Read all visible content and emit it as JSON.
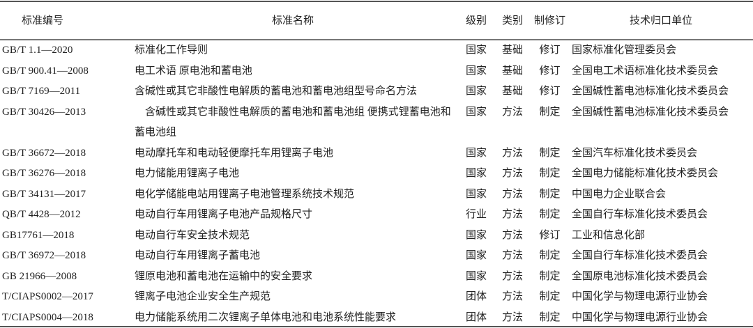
{
  "headers": [
    "标准编号",
    "标准名称",
    "级别",
    "类别",
    "制修订",
    "技术归口单位"
  ],
  "rows": [
    {
      "code": "GB/T 1.1—2020",
      "name": "标准化工作导则",
      "level": "国家",
      "type": "基础",
      "revision": "修订",
      "unit": "国家标准化管理委员会"
    },
    {
      "code": "GB/T 900.41—2008",
      "name": "电工术语 原电池和蓄电池",
      "level": "国家",
      "type": "基础",
      "revision": "修订",
      "unit": "全国电工术语标准化技术委员会"
    },
    {
      "code": "GB/T 7169—2011",
      "name": "含碱性或其它非酸性电解质的蓄电池和蓄电池组型号命名方法",
      "level": "国家",
      "type": "基础",
      "revision": "修订",
      "unit": "全国碱性蓄电池标准化技术委员会"
    },
    {
      "code": "GB/T 30426—2013",
      "name": "　含碱性或其它非酸性电解质的蓄电池和蓄电池组 便携式锂蓄电池和蓄电池组",
      "level": "国家",
      "type": "方法",
      "revision": "制定",
      "unit": "全国碱性蓄电池标准化技术委员会"
    },
    {
      "code": "GB/T 36672—2018",
      "name": "电动摩托车和电动轻便摩托车用锂离子电池",
      "level": "国家",
      "type": "方法",
      "revision": "制定",
      "unit": "全国汽车标准化技术委员会"
    },
    {
      "code": "GB/T 36276—2018",
      "name": "电力储能用锂离子电池",
      "level": "国家",
      "type": "方法",
      "revision": "制定",
      "unit": "全国电力储能标准化技术委员会"
    },
    {
      "code": "GB/T 34131—2017",
      "name": "电化学储能电站用锂离子电池管理系统技术规范",
      "level": "国家",
      "type": "方法",
      "revision": "制定",
      "unit": "中国电力企业联合会"
    },
    {
      "code": "QB/T 4428—2012",
      "name": "电动自行车用锂离子电池产品规格尺寸",
      "level": "行业",
      "type": "方法",
      "revision": "制定",
      "unit": "全国自行车标准化技术委员会"
    },
    {
      "code": "GB17761—2018",
      "name": "电动自行车安全技术规范",
      "level": "国家",
      "type": "方法",
      "revision": "修订",
      "unit": "工业和信息化部"
    },
    {
      "code": "GB/T 36972—2018",
      "name": "电动自行车用锂离子蓄电池",
      "level": "国家",
      "type": "方法",
      "revision": "制定",
      "unit": "全国自行车标准化技术委员会"
    },
    {
      "code": "GB 21966—2008",
      "name": "锂原电池和蓄电池在运输中的安全要求",
      "level": "国家",
      "type": "方法",
      "revision": "制定",
      "unit": "全国原电池标准化技术委员会"
    },
    {
      "code": "T/CIAPS0002—2017",
      "name": "锂离子电池企业安全生产规范",
      "level": "团体",
      "type": "方法",
      "revision": "制定",
      "unit": "中国化学与物理电源行业协会"
    },
    {
      "code": "T/CIAPS0004—2018",
      "name": "电力储能系统用二次锂离子单体电池和电池系统性能要求",
      "level": "团体",
      "type": "方法",
      "revision": "制定",
      "unit": "中国化学与物理电源行业协会"
    }
  ]
}
